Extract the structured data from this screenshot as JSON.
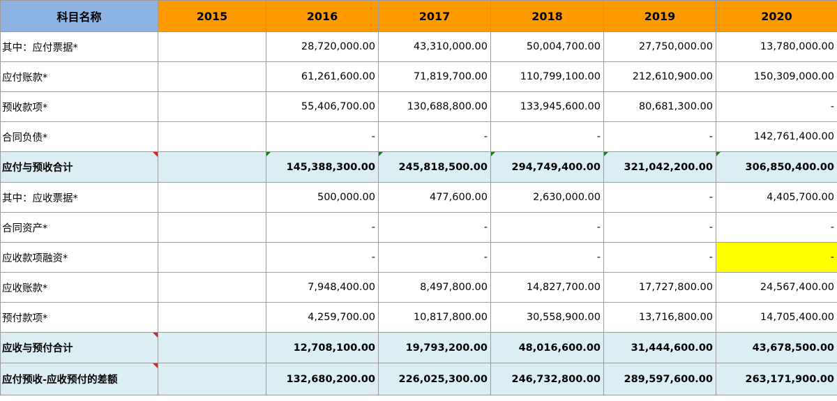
{
  "header": {
    "item_label": "科目名称",
    "years": [
      "2015",
      "2016",
      "2017",
      "2018",
      "2019",
      "2020"
    ]
  },
  "rows": [
    {
      "name": "其中：应付票据*",
      "values": [
        "",
        "28,720,000.00",
        "43,310,000.00",
        "50,004,700.00",
        "27,750,000.00",
        "13,780,000.00"
      ]
    },
    {
      "name": "应付账款*",
      "values": [
        "",
        "61,261,600.00",
        "71,819,700.00",
        "110,799,100.00",
        "212,610,900.00",
        "150,309,000.00"
      ]
    },
    {
      "name": "预收款项*",
      "values": [
        "",
        "55,406,700.00",
        "130,688,800.00",
        "133,945,600.00",
        "80,681,300.00",
        "-"
      ]
    },
    {
      "name": "合同负债*",
      "values": [
        "",
        "-",
        "-",
        "-",
        "-",
        "142,761,400.00"
      ]
    },
    {
      "name": "应付与预收合计",
      "values": [
        "",
        "145,388,300.00",
        "245,818,500.00",
        "294,749,400.00",
        "321,042,200.00",
        "306,850,400.00"
      ]
    },
    {
      "name": "其中：应收票据*",
      "values": [
        "",
        "500,000.00",
        "477,600.00",
        "2,630,000.00",
        "-",
        "4,405,700.00"
      ]
    },
    {
      "name": "合同资产*",
      "values": [
        "",
        "-",
        "-",
        "-",
        "-",
        "-"
      ]
    },
    {
      "name": "应收款项融资*",
      "values": [
        "",
        "-",
        "-",
        "-",
        "-",
        "-"
      ]
    },
    {
      "name": "应收账款*",
      "values": [
        "",
        "7,948,400.00",
        "8,497,800.00",
        "14,827,700.00",
        "17,727,800.00",
        "24,567,400.00"
      ]
    },
    {
      "name": "预付款项*",
      "values": [
        "",
        "4,259,700.00",
        "10,817,800.00",
        "30,558,900.00",
        "13,716,800.00",
        "14,705,400.00"
      ]
    },
    {
      "name": "应收与预付合计",
      "values": [
        "",
        "12,708,100.00",
        "19,793,200.00",
        "48,016,600.00",
        "31,444,600.00",
        "43,678,500.00"
      ]
    },
    {
      "name": "应付预收-应收预付的差额",
      "values": [
        "",
        "132,680,200.00",
        "226,025,300.00",
        "246,732,800.00",
        "289,597,600.00",
        "263,171,900.00"
      ]
    }
  ],
  "colors": {
    "header_name_bg": "#8db4e2",
    "header_year_bg": "#ff9900",
    "summary_row_bg": "#daeef3",
    "highlight_cell_bg": "#ffff00"
  }
}
